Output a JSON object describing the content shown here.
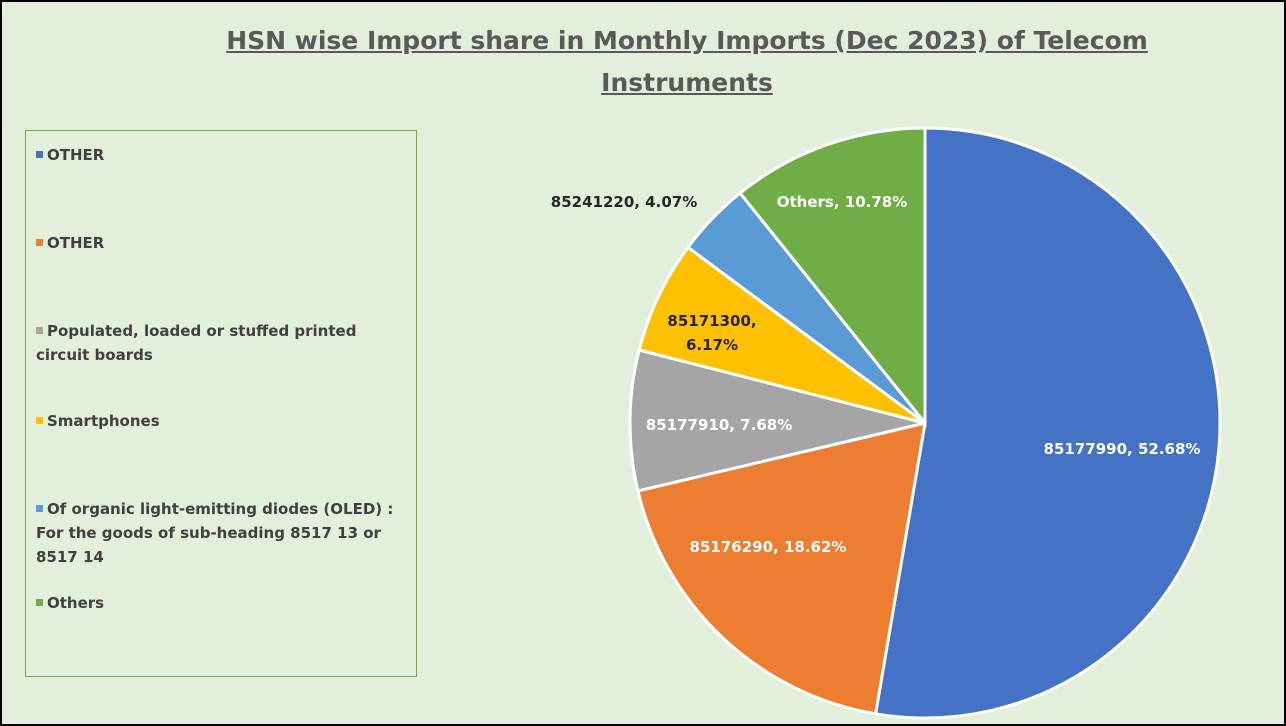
{
  "chart_data": {
    "type": "pie",
    "title": "HSN wise Import share in Monthly Imports (Dec 2023) of Telecom Instruments",
    "series": [
      {
        "name": "OTHER",
        "color": "#4472c4"
      },
      {
        "name": "OTHER",
        "color": "#ed7d31"
      },
      {
        "name": "Populated, loaded or stuffed printed circuit boards",
        "color": "#a5a5a5"
      },
      {
        "name": "Smartphones",
        "color": "#ffc000"
      },
      {
        "name": "Of organic light-emitting diodes (OLED) : For the goods of sub-heading 8517 13 or 8517 14",
        "color": "#5b9bd5"
      },
      {
        "name": "Others",
        "color": "#70ad47"
      }
    ],
    "values": [
      52.68,
      18.62,
      7.68,
      6.17,
      4.07,
      10.78
    ],
    "value_labels": [
      "85177990, 52.68%",
      "85176290, 18.62%",
      "85177910, 7.68%",
      "85171300, 6.17%",
      "85241220, 4.07%",
      "Others, 10.78%"
    ],
    "legend": "left"
  }
}
